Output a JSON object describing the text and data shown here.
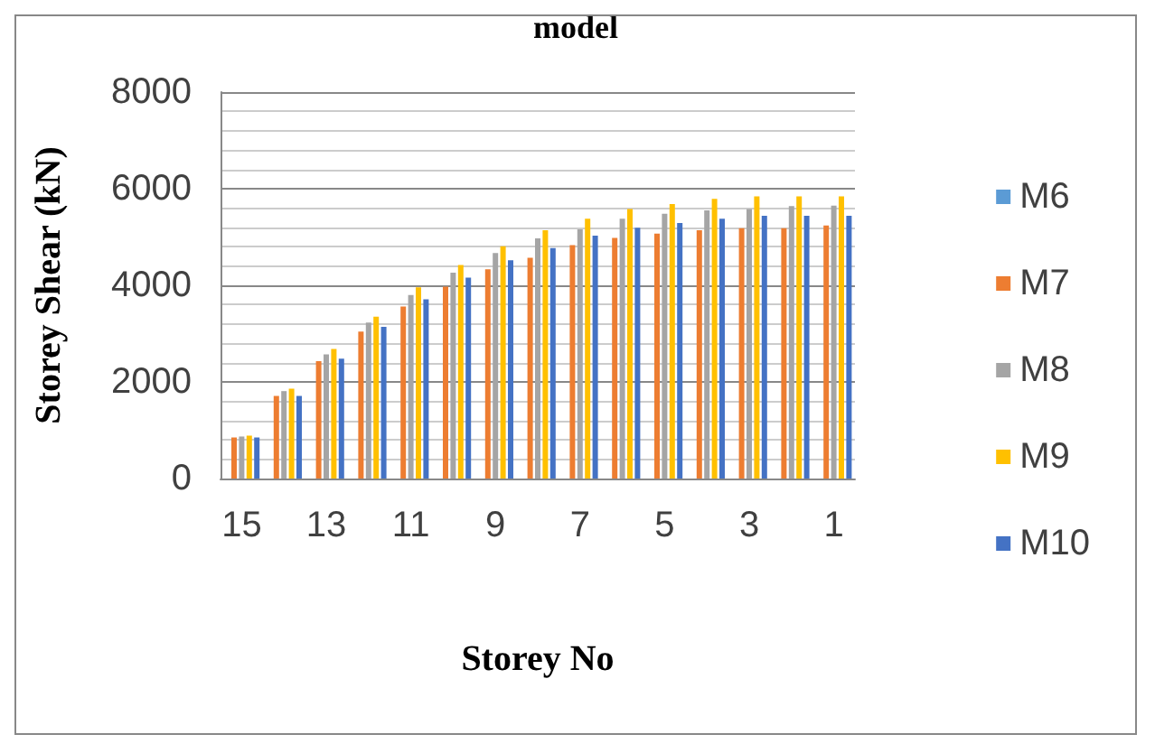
{
  "chart_data": {
    "type": "bar",
    "title": "model",
    "xlabel": "Storey No",
    "ylabel": "Storey Shear (kN)",
    "categories": [
      "15",
      null,
      "13",
      null,
      "11",
      null,
      "9",
      null,
      "7",
      null,
      "5",
      null,
      "3",
      null,
      "1"
    ],
    "series": [
      {
        "name": "M6",
        "color": "#5b9bd5",
        "values": [
          null,
          null,
          null,
          null,
          null,
          null,
          null,
          null,
          null,
          null,
          null,
          null,
          null,
          null,
          null
        ]
      },
      {
        "name": "M7",
        "color": "#ed7d31",
        "values": [
          850,
          1710,
          2430,
          3040,
          3560,
          3970,
          4330,
          4570,
          4830,
          4980,
          5070,
          5140,
          5180,
          5180,
          5240
        ]
      },
      {
        "name": "M8",
        "color": "#a5a5a5",
        "values": [
          870,
          1810,
          2570,
          3230,
          3800,
          4260,
          4670,
          4970,
          5160,
          5380,
          5480,
          5550,
          5580,
          5640,
          5650
        ]
      },
      {
        "name": "M9",
        "color": "#ffc000",
        "values": [
          890,
          1860,
          2680,
          3350,
          3960,
          4420,
          4810,
          5140,
          5380,
          5580,
          5680,
          5790,
          5840,
          5840,
          5840
        ]
      },
      {
        "name": "M10",
        "color": "#4472c4",
        "values": [
          850,
          1710,
          2480,
          3140,
          3710,
          4160,
          4520,
          4770,
          5030,
          5190,
          5290,
          5380,
          5440,
          5440,
          5440
        ]
      }
    ],
    "ylim": [
      0,
      8000
    ],
    "yticks": [
      0,
      2000,
      4000,
      6000,
      8000
    ],
    "grid": true,
    "legend": "right"
  }
}
